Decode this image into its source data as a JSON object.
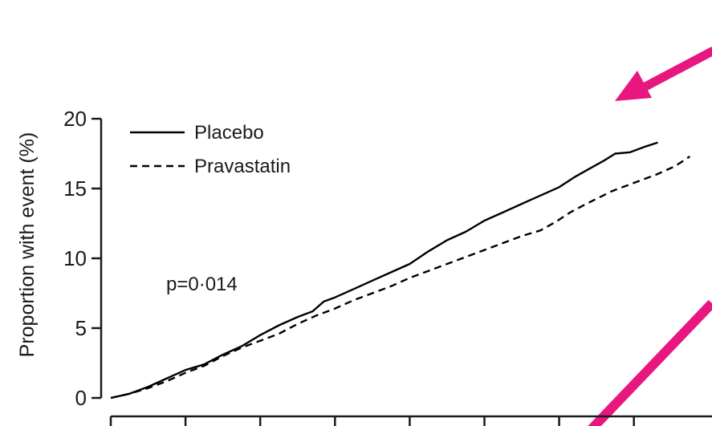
{
  "chart_data": {
    "type": "line",
    "title": "",
    "xlabel": "",
    "ylabel": "Proportion with event (%)",
    "ylim": [
      0,
      20
    ],
    "yticks": [
      0,
      5,
      10,
      15,
      20
    ],
    "xlim": [
      0,
      8
    ],
    "xticks": [
      0,
      1,
      2,
      3,
      4,
      5,
      6,
      7
    ],
    "x_tick_labels_visible": false,
    "grid": false,
    "legend_position": "top-left",
    "annotation": "p=0·014",
    "series": [
      {
        "name": "Placebo",
        "style": "solid",
        "color": "#000000",
        "points": [
          [
            0,
            0.0
          ],
          [
            0.25,
            0.3
          ],
          [
            0.5,
            0.8
          ],
          [
            0.75,
            1.4
          ],
          [
            1.0,
            2.0
          ],
          [
            1.25,
            2.4
          ],
          [
            1.5,
            3.1
          ],
          [
            1.75,
            3.7
          ],
          [
            2.0,
            4.5
          ],
          [
            2.25,
            5.2
          ],
          [
            2.5,
            5.8
          ],
          [
            2.7,
            6.2
          ],
          [
            2.85,
            6.9
          ],
          [
            3.0,
            7.2
          ],
          [
            3.25,
            7.8
          ],
          [
            3.5,
            8.4
          ],
          [
            3.75,
            9.0
          ],
          [
            4.0,
            9.6
          ],
          [
            4.25,
            10.5
          ],
          [
            4.5,
            11.3
          ],
          [
            4.75,
            11.9
          ],
          [
            5.0,
            12.7
          ],
          [
            5.25,
            13.3
          ],
          [
            5.5,
            13.9
          ],
          [
            5.75,
            14.5
          ],
          [
            6.0,
            15.1
          ],
          [
            6.2,
            15.8
          ],
          [
            6.4,
            16.4
          ],
          [
            6.6,
            17.0
          ],
          [
            6.75,
            17.5
          ],
          [
            6.95,
            17.6
          ],
          [
            7.15,
            18.0
          ],
          [
            7.32,
            18.3
          ]
        ]
      },
      {
        "name": "Pravastatin",
        "style": "dashed",
        "color": "#000000",
        "points": [
          [
            0,
            0.0
          ],
          [
            0.25,
            0.3
          ],
          [
            0.5,
            0.7
          ],
          [
            0.75,
            1.2
          ],
          [
            1.0,
            1.8
          ],
          [
            1.25,
            2.3
          ],
          [
            1.5,
            3.0
          ],
          [
            1.75,
            3.6
          ],
          [
            2.0,
            4.1
          ],
          [
            2.25,
            4.6
          ],
          [
            2.5,
            5.3
          ],
          [
            2.75,
            5.9
          ],
          [
            3.0,
            6.4
          ],
          [
            3.25,
            7.0
          ],
          [
            3.5,
            7.5
          ],
          [
            3.75,
            8.0
          ],
          [
            4.0,
            8.6
          ],
          [
            4.25,
            9.1
          ],
          [
            4.5,
            9.6
          ],
          [
            4.75,
            10.1
          ],
          [
            5.0,
            10.6
          ],
          [
            5.25,
            11.1
          ],
          [
            5.5,
            11.6
          ],
          [
            5.75,
            12.0
          ],
          [
            5.95,
            12.6
          ],
          [
            6.15,
            13.3
          ],
          [
            6.4,
            14.0
          ],
          [
            6.7,
            14.8
          ],
          [
            7.0,
            15.4
          ],
          [
            7.3,
            16.0
          ],
          [
            7.55,
            16.6
          ],
          [
            7.75,
            17.3
          ]
        ]
      }
    ]
  }
}
